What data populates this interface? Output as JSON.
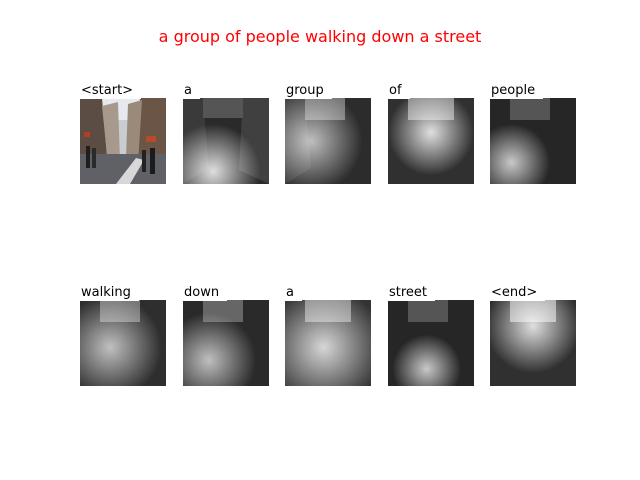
{
  "caption": "a group of people walking down a street",
  "steps": [
    {
      "word": "<start>",
      "kind": "photo"
    },
    {
      "word": "a",
      "kind": "attention",
      "focus": "bottom-center"
    },
    {
      "word": "group",
      "kind": "attention",
      "focus": "left"
    },
    {
      "word": "of",
      "kind": "attention",
      "focus": "center"
    },
    {
      "word": "people",
      "kind": "attention",
      "focus": "bottom-left"
    },
    {
      "word": "walking",
      "kind": "attention",
      "focus": "center-left"
    },
    {
      "word": "down",
      "kind": "attention",
      "focus": "bottom-left"
    },
    {
      "word": "a",
      "kind": "attention",
      "focus": "wide"
    },
    {
      "word": "street",
      "kind": "attention",
      "focus": "bottom-center"
    },
    {
      "word": "<end>",
      "kind": "attention",
      "focus": "top-center"
    }
  ]
}
